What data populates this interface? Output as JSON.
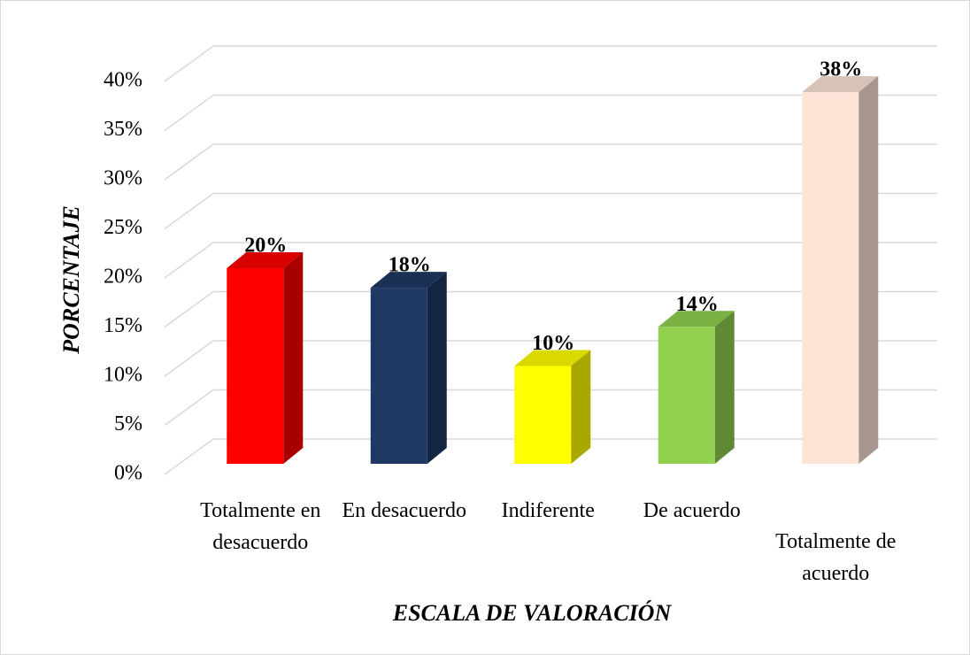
{
  "chart_data": {
    "type": "bar3d",
    "x_label": "ESCALA DE VALORACIÓN",
    "y_label": "PORCENTAJE",
    "categories": [
      "Totalmente en desacuerdo",
      "En desacuerdo",
      "Indiferente",
      "De acuerdo",
      "Totalmente de acuerdo"
    ],
    "values": [
      20,
      18,
      10,
      14,
      38
    ],
    "value_labels": [
      "20%",
      "18%",
      "10%",
      "14%",
      "38%"
    ],
    "colors": [
      "#ff0000",
      "#1f3864",
      "#ffff00",
      "#92d050",
      "#fde4d7"
    ],
    "ylim": [
      0,
      40
    ],
    "yticks": [
      {
        "value": 0,
        "label": "0%"
      },
      {
        "value": 5,
        "label": "5%"
      },
      {
        "value": 10,
        "label": "10%"
      },
      {
        "value": 15,
        "label": "15%"
      },
      {
        "value": 20,
        "label": "20%"
      },
      {
        "value": 25,
        "label": "25%"
      },
      {
        "value": 30,
        "label": "30%"
      },
      {
        "value": 35,
        "label": "35%"
      },
      {
        "value": 40,
        "label": "40%"
      }
    ],
    "grid": true
  }
}
